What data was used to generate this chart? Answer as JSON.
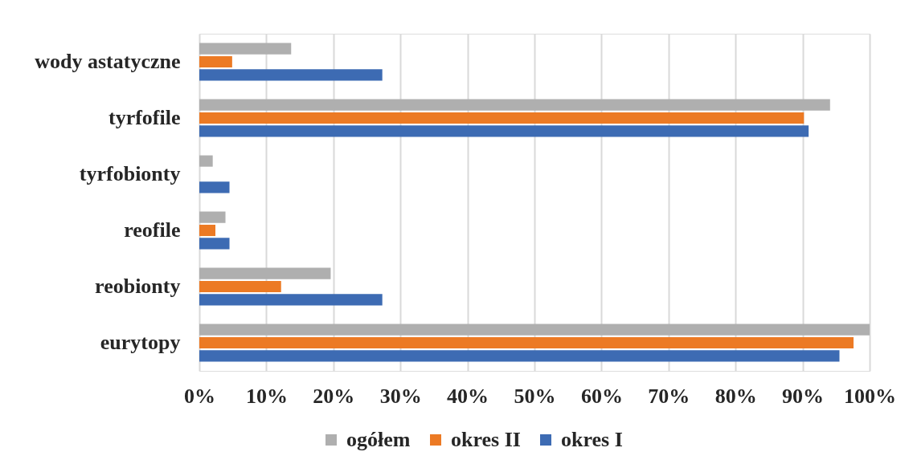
{
  "chart_data": {
    "type": "bar",
    "orientation": "horizontal",
    "categories": [
      "wody astatyczne",
      "tyrfofile",
      "tyrfobionty",
      "reofile",
      "reobionty",
      "eurytopy"
    ],
    "series": [
      {
        "name": "ogółem",
        "color": "#afafaf",
        "values": [
          13.7,
          94.1,
          2.0,
          3.9,
          19.6,
          100
        ]
      },
      {
        "name": "okres II",
        "color": "#ec7a24",
        "values": [
          4.9,
          90.2,
          0,
          2.4,
          12.2,
          97.6
        ]
      },
      {
        "name": "okres I",
        "color": "#3d6bb3",
        "values": [
          27.3,
          90.9,
          4.5,
          4.5,
          27.3,
          95.5
        ]
      }
    ],
    "xlim": [
      0,
      100
    ],
    "xticks": [
      {
        "value": 0,
        "label": "0%"
      },
      {
        "value": 10,
        "label": "10%"
      },
      {
        "value": 20,
        "label": "20%"
      },
      {
        "value": 30,
        "label": "30%"
      },
      {
        "value": 40,
        "label": "40%"
      },
      {
        "value": 50,
        "label": "50%"
      },
      {
        "value": 60,
        "label": "60%"
      },
      {
        "value": 70,
        "label": "70%"
      },
      {
        "value": 80,
        "label": "80%"
      },
      {
        "value": 90,
        "label": "90%"
      },
      {
        "value": 100,
        "label": "100%"
      }
    ],
    "grid": "x",
    "legend": "bottom"
  }
}
